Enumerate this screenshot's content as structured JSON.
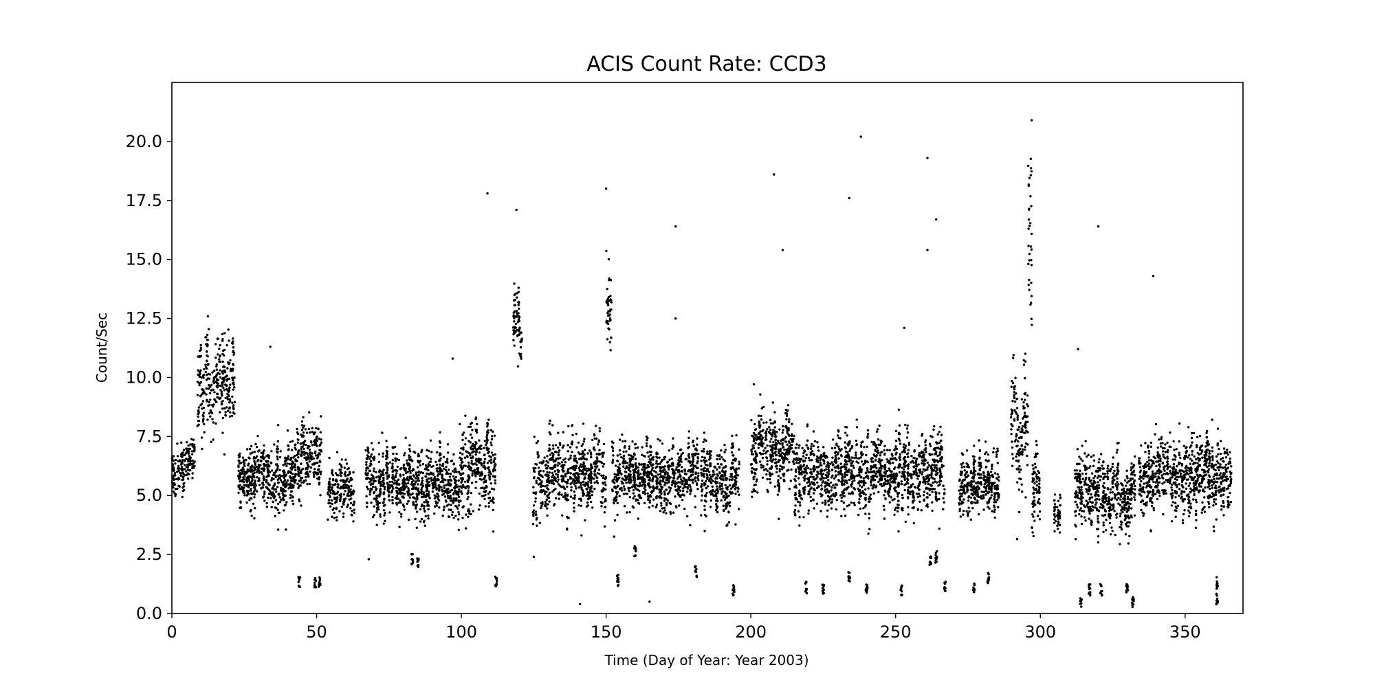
{
  "chart_data": {
    "type": "scatter",
    "title": "ACIS Count Rate: CCD3",
    "xlabel": "Time (Day of Year: Year 2003)",
    "ylabel": "Count/Sec",
    "xlim": [
      0,
      370
    ],
    "ylim": [
      0,
      22.5
    ],
    "xticks": [
      0,
      50,
      100,
      150,
      200,
      250,
      300,
      350
    ],
    "xtick_labels": [
      "0",
      "50",
      "100",
      "150",
      "200",
      "250",
      "300",
      "350"
    ],
    "yticks": [
      0,
      2.5,
      5,
      7.5,
      10,
      12.5,
      15,
      17.5,
      20
    ],
    "ytick_labels": [
      "0.0",
      "2.5",
      "5.0",
      "7.5",
      "10.0",
      "12.5",
      "15.0",
      "17.5",
      "20.0"
    ],
    "grid": false,
    "marker_color": "#000000",
    "segments": [
      {
        "x": [
          0,
          8
        ],
        "center": 6.1,
        "spread": 1.5
      },
      {
        "x": [
          9,
          22
        ],
        "center": 9.9,
        "spread": 2.8
      },
      {
        "x": [
          23,
          45
        ],
        "center": 5.8,
        "spread": 2.0
      },
      {
        "x": [
          45,
          52
        ],
        "center": 6.6,
        "spread": 1.9
      },
      {
        "x": [
          54,
          63
        ],
        "center": 5.2,
        "spread": 1.8
      },
      {
        "x": [
          67,
          100
        ],
        "center": 5.5,
        "spread": 1.9
      },
      {
        "x": [
          100,
          112
        ],
        "center": 6.2,
        "spread": 2.6
      },
      {
        "x": [
          118,
          121
        ],
        "center": 12.2,
        "spread": 2.0
      },
      {
        "x": [
          125,
          150
        ],
        "center": 5.8,
        "spread": 2.2
      },
      {
        "x": [
          150,
          152
        ],
        "center": 13.0,
        "spread": 2.6
      },
      {
        "x": [
          152,
          182
        ],
        "center": 5.9,
        "spread": 2.0
      },
      {
        "x": [
          183,
          196
        ],
        "center": 5.6,
        "spread": 2.0
      },
      {
        "x": [
          200,
          215
        ],
        "center": 7.0,
        "spread": 2.2
      },
      {
        "x": [
          215,
          267
        ],
        "center": 5.9,
        "spread": 2.2
      },
      {
        "x": [
          272,
          286
        ],
        "center": 5.5,
        "spread": 1.9
      },
      {
        "x": [
          290,
          296
        ],
        "center": 8.0,
        "spread": 3.5
      },
      {
        "x": [
          296,
          297
        ],
        "center": 15.0,
        "spread": 7.0
      },
      {
        "x": [
          297,
          300
        ],
        "center": 5.5,
        "spread": 2.2
      },
      {
        "x": [
          305,
          307
        ],
        "center": 4.2,
        "spread": 1.2
      },
      {
        "x": [
          312,
          333
        ],
        "center": 5.0,
        "spread": 2.2
      },
      {
        "x": [
          334,
          366
        ],
        "center": 5.8,
        "spread": 2.2
      }
    ],
    "low_clusters": [
      {
        "x": 44,
        "y": 1.35
      },
      {
        "x": 49.5,
        "y": 1.3
      },
      {
        "x": 51,
        "y": 1.35
      },
      {
        "x": 83,
        "y": 2.3
      },
      {
        "x": 85,
        "y": 2.2
      },
      {
        "x": 112,
        "y": 1.4
      },
      {
        "x": 154,
        "y": 1.4
      },
      {
        "x": 160,
        "y": 2.6
      },
      {
        "x": 181,
        "y": 1.8
      },
      {
        "x": 194,
        "y": 1.0
      },
      {
        "x": 219,
        "y": 1.1
      },
      {
        "x": 225,
        "y": 1.0
      },
      {
        "x": 234,
        "y": 1.6
      },
      {
        "x": 240,
        "y": 1.0
      },
      {
        "x": 252,
        "y": 1.0
      },
      {
        "x": 262,
        "y": 2.2
      },
      {
        "x": 264,
        "y": 2.4
      },
      {
        "x": 267,
        "y": 1.1
      },
      {
        "x": 277,
        "y": 1.1
      },
      {
        "x": 282,
        "y": 1.5
      },
      {
        "x": 314,
        "y": 0.5
      },
      {
        "x": 317,
        "y": 1.0
      },
      {
        "x": 321,
        "y": 1.0
      },
      {
        "x": 330,
        "y": 1.0
      },
      {
        "x": 332,
        "y": 0.5
      },
      {
        "x": 361,
        "y": 1.3
      },
      {
        "x": 361,
        "y": 0.6
      }
    ],
    "outliers": [
      {
        "x": 109,
        "y": 17.8
      },
      {
        "x": 119,
        "y": 17.1
      },
      {
        "x": 150,
        "y": 18.0
      },
      {
        "x": 174,
        "y": 16.4
      },
      {
        "x": 208,
        "y": 18.6
      },
      {
        "x": 211,
        "y": 15.4
      },
      {
        "x": 234,
        "y": 17.6
      },
      {
        "x": 238,
        "y": 20.2
      },
      {
        "x": 261,
        "y": 19.3
      },
      {
        "x": 261,
        "y": 15.4
      },
      {
        "x": 264,
        "y": 16.7
      },
      {
        "x": 297,
        "y": 20.9
      },
      {
        "x": 320,
        "y": 16.4
      },
      {
        "x": 339,
        "y": 14.3
      },
      {
        "x": 141,
        "y": 0.4
      },
      {
        "x": 165,
        "y": 0.5
      },
      {
        "x": 68,
        "y": 2.3
      },
      {
        "x": 125,
        "y": 2.4
      },
      {
        "x": 34,
        "y": 11.3
      },
      {
        "x": 97,
        "y": 10.8
      },
      {
        "x": 313,
        "y": 11.2
      },
      {
        "x": 174,
        "y": 12.5
      },
      {
        "x": 253,
        "y": 12.1
      }
    ]
  }
}
